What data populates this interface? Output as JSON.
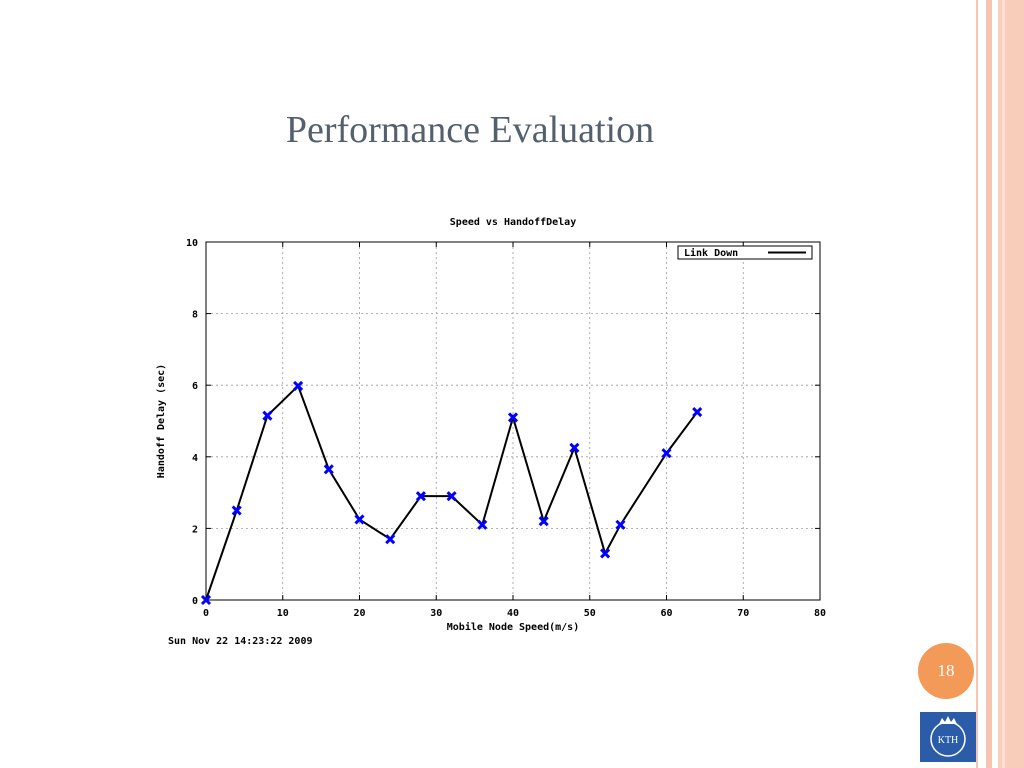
{
  "slide": {
    "title": "Performance Evaluation",
    "page_number": "18",
    "logo_text": "KTH",
    "colors": {
      "title": "#55606e",
      "accent": "#f39a58",
      "stripe": "#f6c4b0",
      "logo": "#2a5caa"
    }
  },
  "chart_data": {
    "type": "line",
    "title": "Speed vs HandoffDelay",
    "xlabel": "Mobile Node Speed(m/s)",
    "ylabel": "Handoff Delay (sec)",
    "xlim": [
      0,
      80
    ],
    "ylim": [
      0,
      10
    ],
    "xticks": [
      0,
      10,
      20,
      30,
      40,
      50,
      60,
      70,
      80
    ],
    "yticks": [
      0,
      2,
      4,
      6,
      8,
      10
    ],
    "grid": true,
    "legend_position": "top-right",
    "timestamp": "Sun Nov 22 14:23:22 2009",
    "series": [
      {
        "name": "Link Down",
        "color": "#000000",
        "marker_color": "#0000ff",
        "x": [
          0,
          4,
          8,
          12,
          16,
          20,
          24,
          28,
          32,
          36,
          40,
          44,
          48,
          52,
          54,
          60,
          64
        ],
        "y": [
          0,
          2.5,
          5.15,
          5.98,
          3.65,
          2.25,
          1.7,
          2.9,
          2.9,
          2.1,
          5.1,
          2.2,
          4.25,
          1.3,
          2.1,
          4.1,
          5.25
        ]
      }
    ]
  }
}
